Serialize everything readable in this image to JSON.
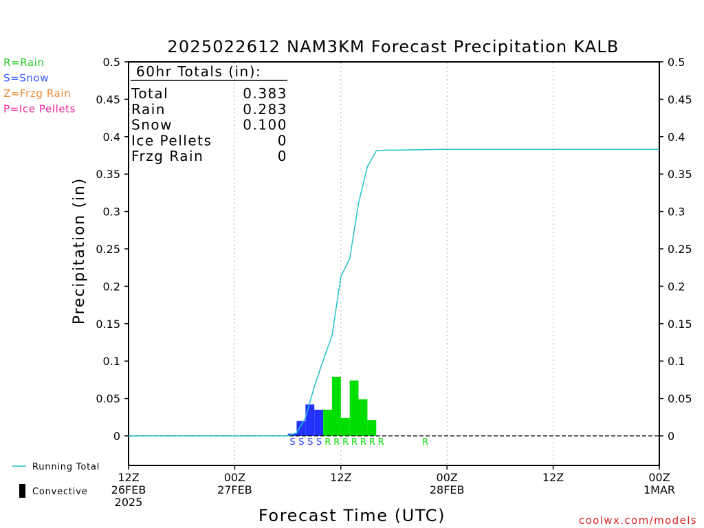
{
  "chart_data": {
    "type": "bar",
    "title": "2025022612 NAM3KM Forecast Precipitation KALB",
    "xlabel": "Forecast Time (UTC)",
    "ylabel": "Precipitation (in)",
    "ylim": [
      0,
      0.5
    ],
    "y_ticks": [
      "0",
      "0.05",
      "0.1",
      "0.15",
      "0.2",
      "0.25",
      "0.3",
      "0.35",
      "0.4",
      "0.45",
      "0.5"
    ],
    "x_range_hours": [
      0,
      60
    ],
    "x_ticks": [
      {
        "hour": 0,
        "line1": "12Z",
        "line2": "26FEB",
        "line3": "2025"
      },
      {
        "hour": 12,
        "line1": "00Z",
        "line2": "27FEB",
        "line3": ""
      },
      {
        "hour": 24,
        "line1": "12Z",
        "line2": "",
        "line3": ""
      },
      {
        "hour": 36,
        "line1": "00Z",
        "line2": "28FEB",
        "line3": ""
      },
      {
        "hour": 48,
        "line1": "12Z",
        "line2": "",
        "line3": ""
      },
      {
        "hour": 60,
        "line1": "00Z",
        "line2": "1MAR",
        "line3": ""
      }
    ],
    "grid": "vertical dotted at 00Z and 12Z",
    "bars": [
      {
        "start": 18.0,
        "end": 19.0,
        "value": 0.003,
        "type": "S"
      },
      {
        "start": 19.0,
        "end": 20.0,
        "value": 0.02,
        "type": "S"
      },
      {
        "start": 20.0,
        "end": 21.0,
        "value": 0.042,
        "type": "S"
      },
      {
        "start": 21.0,
        "end": 22.0,
        "value": 0.035,
        "type": "S"
      },
      {
        "start": 22.0,
        "end": 23.0,
        "value": 0.035,
        "type": "R"
      },
      {
        "start": 23.0,
        "end": 24.0,
        "value": 0.079,
        "type": "R"
      },
      {
        "start": 24.0,
        "end": 25.0,
        "value": 0.024,
        "type": "R"
      },
      {
        "start": 25.0,
        "end": 26.0,
        "value": 0.074,
        "type": "R"
      },
      {
        "start": 26.0,
        "end": 27.0,
        "value": 0.049,
        "type": "R"
      },
      {
        "start": 27.0,
        "end": 28.0,
        "value": 0.021,
        "type": "R"
      }
    ],
    "running_total": {
      "name": "Running Total",
      "x": [
        0,
        18,
        19,
        20,
        21,
        22,
        23,
        24,
        25,
        26,
        27,
        28,
        29,
        30,
        35,
        60
      ],
      "y": [
        0,
        0,
        0.004,
        0.024,
        0.066,
        0.101,
        0.134,
        0.213,
        0.237,
        0.311,
        0.36,
        0.381,
        0.382,
        0.382,
        0.383,
        0.383
      ]
    },
    "type_markers": [
      {
        "hour": 19.0,
        "type": "S"
      },
      {
        "hour": 20.0,
        "type": "S"
      },
      {
        "hour": 21.0,
        "type": "S"
      },
      {
        "hour": 22.0,
        "type": "S"
      },
      {
        "hour": 23.0,
        "type": "R"
      },
      {
        "hour": 24.0,
        "type": "R"
      },
      {
        "hour": 25.0,
        "type": "R"
      },
      {
        "hour": 26.0,
        "type": "R"
      },
      {
        "hour": 27.0,
        "type": "R"
      },
      {
        "hour": 28.0,
        "type": "R"
      },
      {
        "hour": 29.0,
        "type": "R"
      },
      {
        "hour": 34.0,
        "type": "R"
      }
    ],
    "totals_box": {
      "header": "60hr Totals (in):",
      "rows": [
        {
          "label": "Total",
          "value": "0.383"
        },
        {
          "label": "Rain",
          "value": "0.283"
        },
        {
          "label": "Snow",
          "value": "0.100"
        },
        {
          "label": "Ice Pellets",
          "value": "0"
        },
        {
          "label": "Frzg Rain",
          "value": "0"
        }
      ]
    },
    "type_legend": [
      {
        "code": "R",
        "text": "R=Rain",
        "color": "#22cc22"
      },
      {
        "code": "S",
        "text": "S=Snow",
        "color": "#3355ff"
      },
      {
        "code": "Z",
        "text": "Z=Frzg Rain",
        "color": "#ee8833"
      },
      {
        "code": "P",
        "text": "P=Ice Pellets",
        "color": "#ee2299"
      }
    ],
    "line_legend": [
      {
        "text": "Running Total",
        "kind": "line",
        "color": "#22c0c8"
      },
      {
        "text": "Convective",
        "kind": "bar",
        "color": "#000000"
      }
    ],
    "colors": {
      "rain": "#00dd00",
      "snow": "#2233ff",
      "line": "#22c0c8",
      "grid": "#aaaaaa"
    }
  },
  "credit": "coolwx.com/models"
}
